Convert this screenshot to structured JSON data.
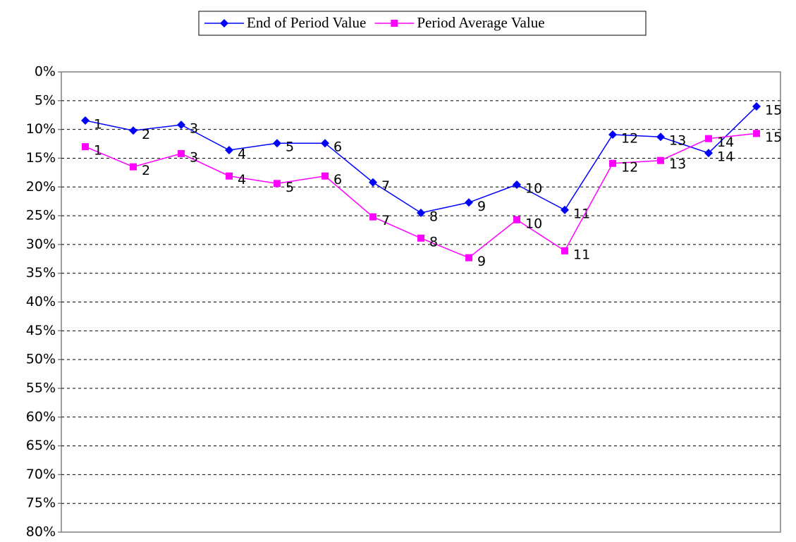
{
  "chart_data": {
    "type": "line",
    "categories": [
      "1",
      "2",
      "3",
      "4",
      "5",
      "6",
      "7",
      "8",
      "9",
      "10",
      "11",
      "12",
      "13",
      "14",
      "15"
    ],
    "series": [
      {
        "name": "End of Period Value",
        "color": "#0000ff",
        "marker": "diamond",
        "values": [
          8.45,
          10.2,
          9.2,
          13.6,
          12.4,
          12.4,
          19.2,
          24.5,
          22.7,
          19.6,
          24.0,
          10.9,
          11.3,
          14.1,
          6.0
        ]
      },
      {
        "name": "Period Average Value",
        "color": "#ff00ff",
        "marker": "square",
        "values": [
          13.0,
          16.5,
          14.2,
          18.1,
          19.4,
          18.1,
          25.2,
          28.9,
          32.3,
          25.7,
          31.1,
          15.9,
          15.4,
          11.6,
          10.7
        ]
      }
    ],
    "ylim": [
      0,
      80
    ],
    "y_reversed": true,
    "yticks": [
      {
        "value": 0,
        "label": "0%"
      },
      {
        "value": 5,
        "label": "5%"
      },
      {
        "value": 10,
        "label": "10%"
      },
      {
        "value": 15,
        "label": "15%"
      },
      {
        "value": 20,
        "label": "20%"
      },
      {
        "value": 25,
        "label": "25%"
      },
      {
        "value": 30,
        "label": "30%"
      },
      {
        "value": 35,
        "label": "35%"
      },
      {
        "value": 40,
        "label": "40%"
      },
      {
        "value": 45,
        "label": "45%"
      },
      {
        "value": 50,
        "label": "50%"
      },
      {
        "value": 55,
        "label": "55%"
      },
      {
        "value": 60,
        "label": "60%"
      },
      {
        "value": 65,
        "label": "65%"
      },
      {
        "value": 70,
        "label": "70%"
      },
      {
        "value": 75,
        "label": "75%"
      },
      {
        "value": 80,
        "label": "80%"
      }
    ],
    "grid": true,
    "legend": "top"
  }
}
